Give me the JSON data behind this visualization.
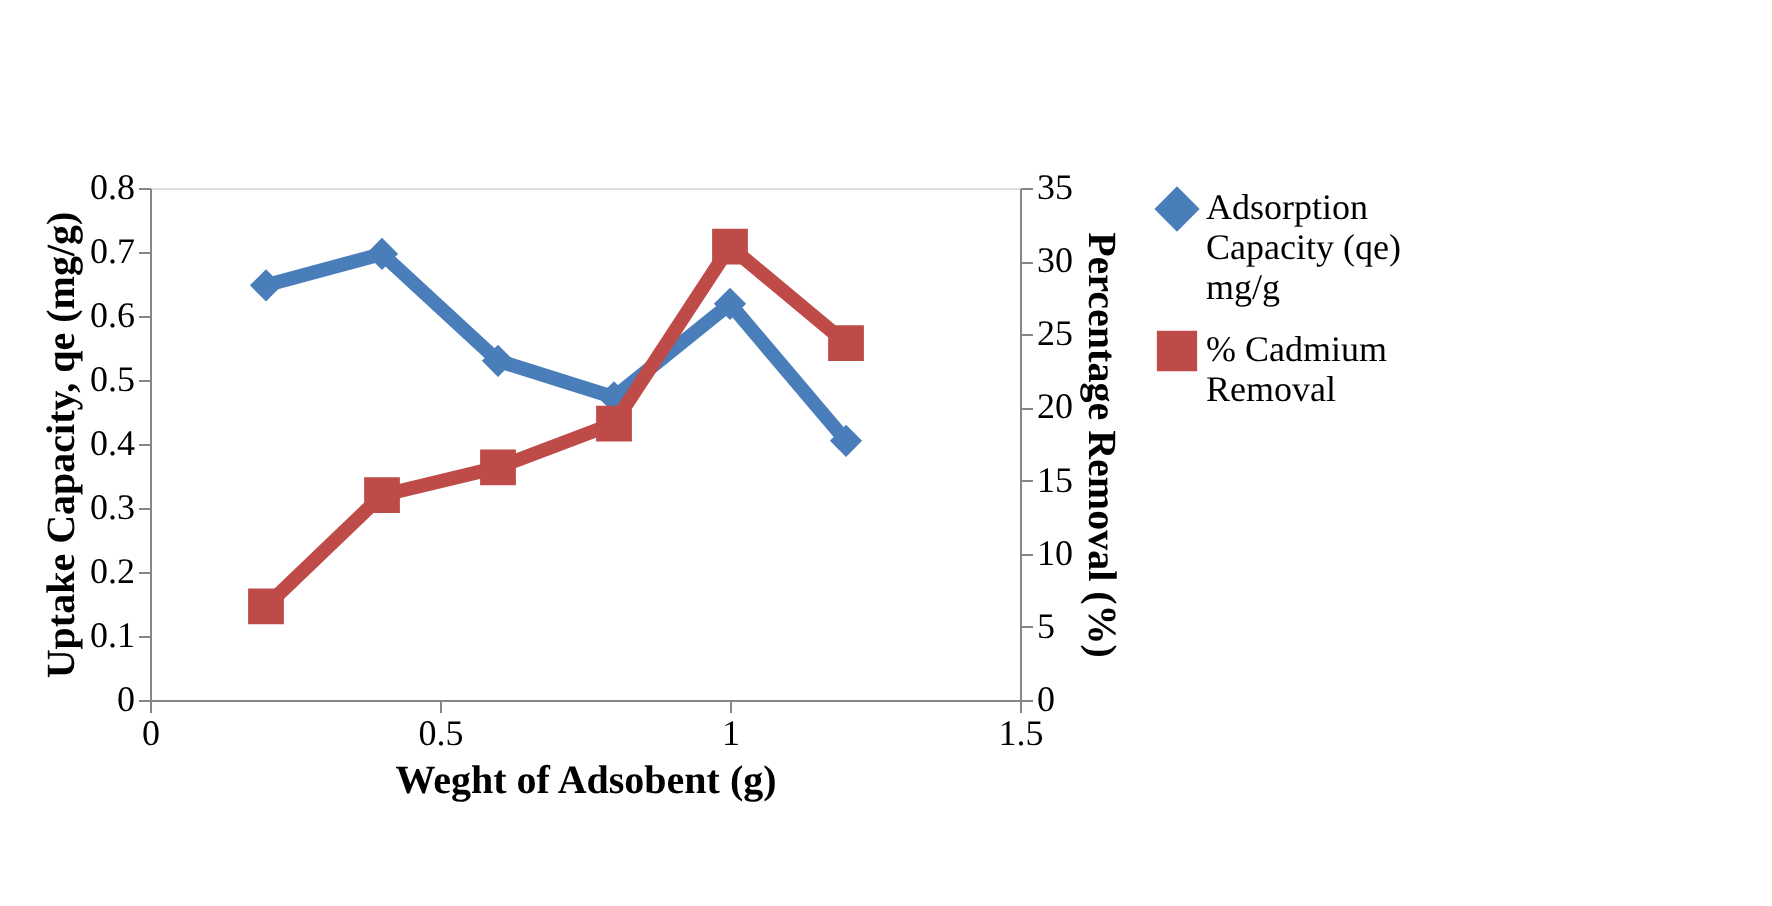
{
  "chart_data": {
    "type": "line",
    "xlabel": "Weght of Adsobent (g)",
    "ylabel": "Uptake Capacity, qe (mg/g)",
    "y2label": "Percentage Removal (%)",
    "x": [
      0.2,
      0.4,
      0.6,
      0.8,
      1.0,
      1.2
    ],
    "series": [
      {
        "name": "Adsorption Capacity (qe) mg/g",
        "color": "#4a7ebb",
        "marker": "diamond",
        "values": [
          0.648,
          0.697,
          0.53,
          0.473,
          0.619,
          0.405
        ]
      },
      {
        "name": "% Cadmium Removal",
        "color": "#be4b48",
        "marker": "square",
        "axis": "y2",
        "values": [
          6.4,
          14.0,
          15.9,
          18.9,
          31.0,
          24.4
        ]
      }
    ],
    "xlim": [
      0,
      1.5
    ],
    "xticks": [
      0,
      0.5,
      1,
      1.5
    ],
    "ylim": [
      0,
      0.8
    ],
    "yticks": [
      0,
      0.1,
      0.2,
      0.3,
      0.4,
      0.5,
      0.6,
      0.7,
      0.8
    ],
    "y2lim": [
      0,
      35
    ],
    "y2ticks": [
      0,
      5,
      10,
      15,
      20,
      25,
      30,
      35
    ],
    "legend": "right",
    "line_style": "solid"
  }
}
